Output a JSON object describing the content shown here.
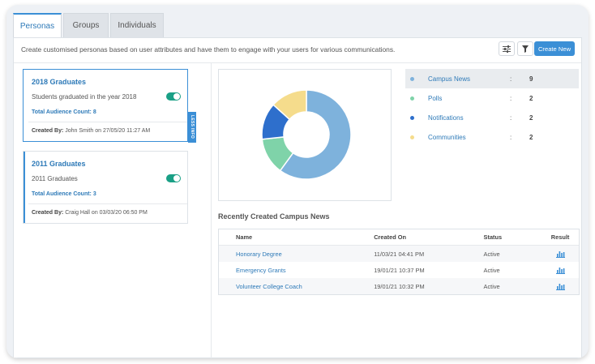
{
  "tabs": [
    {
      "label": "Personas",
      "active": true
    },
    {
      "label": "Groups",
      "active": false
    },
    {
      "label": "Individuals",
      "active": false
    }
  ],
  "description": "Create customised personas based on user attributes and have them to engage with your users for various communications.",
  "toolbar": {
    "filter_settings_icon": "sliders-icon",
    "filter_icon": "funnel-icon",
    "create_label": "Create New"
  },
  "personas": [
    {
      "title": "2018 Graduates",
      "subtitle": "Students graduated in the year 2018",
      "count_label": "Total Audience Count: 8",
      "created_by_label": "Created By:",
      "created_by_value": "John Smith on 27/05/20 11:27 AM",
      "enabled": true,
      "less_info_label": "LESS INFO"
    },
    {
      "title": "2011 Graduates",
      "subtitle": "2011 Graduates",
      "count_label": "Total Audience Count: 3",
      "created_by_label": "Created By:",
      "created_by_value": "Craig Hall on 03/03/20 06:50 PM",
      "enabled": true
    }
  ],
  "chart_data": {
    "type": "pie",
    "donut": true,
    "categories": [
      "Campus News",
      "Polls",
      "Notifications",
      "Communities"
    ],
    "values": [
      9,
      2,
      2,
      2
    ],
    "colors": [
      "#7eb2dc",
      "#7fd3a9",
      "#2e6fcc",
      "#f5dc8c"
    ],
    "legend_position": "right"
  },
  "legend": [
    {
      "name": "Campus News",
      "colon": ":",
      "value": "9",
      "highlight": true
    },
    {
      "name": "Polls",
      "colon": ":",
      "value": "2",
      "highlight": false
    },
    {
      "name": "Notifications",
      "colon": ":",
      "value": "2",
      "highlight": false
    },
    {
      "name": "Communities",
      "colon": ":",
      "value": "2",
      "highlight": false
    }
  ],
  "recent": {
    "title": "Recently Created Campus News",
    "headers": [
      "Name",
      "Created On",
      "Status",
      "Result"
    ],
    "rows": [
      {
        "name": "Honorary Degree",
        "created": "11/03/21 04:41 PM",
        "status": "Active"
      },
      {
        "name": "Emergency Grants",
        "created": "19/01/21 10:37 PM",
        "status": "Active"
      },
      {
        "name": "Volunteer College Coach",
        "created": "19/01/21 10:32 PM",
        "status": "Active"
      }
    ],
    "result_icon": "bar-chart-icon"
  }
}
